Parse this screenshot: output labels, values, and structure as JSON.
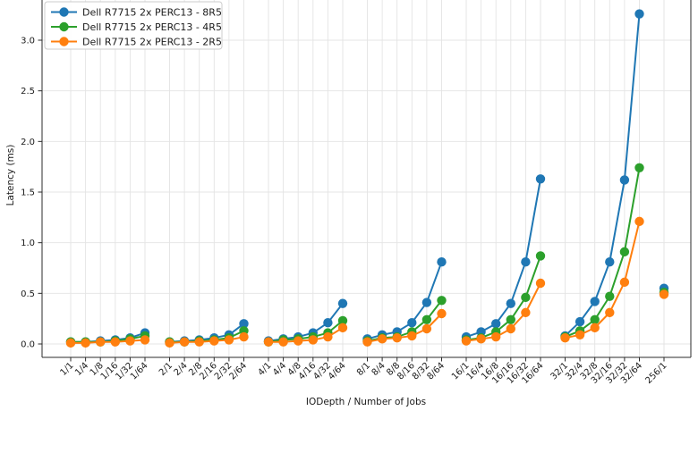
{
  "chart_data": {
    "type": "line",
    "title": "",
    "xlabel": "IODepth / Number of Jobs",
    "ylabel": "Latency (ms)",
    "grid": true,
    "legend_position": "upper-left",
    "group_size": 6,
    "y_ticks": [
      0.0,
      0.5,
      1.0,
      1.5,
      2.0,
      2.5,
      3.0
    ],
    "ylim": [
      -0.13,
      3.4
    ],
    "categories": [
      "1/1",
      "1/4",
      "1/8",
      "1/16",
      "1/32",
      "1/64",
      "2/1",
      "2/4",
      "2/8",
      "2/16",
      "2/32",
      "2/64",
      "4/1",
      "4/4",
      "4/8",
      "4/16",
      "4/32",
      "4/64",
      "8/1",
      "8/4",
      "8/8",
      "8/16",
      "8/32",
      "8/64",
      "16/1",
      "16/4",
      "16/8",
      "16/16",
      "16/32",
      "16/64",
      "32/1",
      "32/4",
      "32/8",
      "32/16",
      "32/32",
      "32/64",
      "256/1"
    ],
    "series": [
      {
        "name": "Dell R7715 2x PERC13 - 8R5",
        "color": "#1f77b4",
        "values": [
          0.02,
          0.02,
          0.03,
          0.04,
          0.06,
          0.11,
          0.02,
          0.03,
          0.04,
          0.06,
          0.09,
          0.2,
          0.03,
          0.05,
          0.07,
          0.11,
          0.21,
          0.4,
          0.05,
          0.09,
          0.12,
          0.21,
          0.41,
          0.81,
          0.07,
          0.12,
          0.2,
          0.4,
          0.81,
          1.63,
          0.08,
          0.22,
          0.42,
          0.81,
          1.62,
          3.26,
          0.55
        ]
      },
      {
        "name": "Dell R7715 2x PERC13 - 4R5",
        "color": "#2ca02c",
        "values": [
          0.02,
          0.02,
          0.02,
          0.03,
          0.05,
          0.08,
          0.02,
          0.02,
          0.03,
          0.04,
          0.06,
          0.13,
          0.02,
          0.04,
          0.05,
          0.07,
          0.11,
          0.23,
          0.03,
          0.06,
          0.07,
          0.12,
          0.24,
          0.43,
          0.04,
          0.06,
          0.12,
          0.24,
          0.46,
          0.87,
          0.07,
          0.13,
          0.24,
          0.47,
          0.91,
          1.74,
          0.51
        ]
      },
      {
        "name": "Dell R7715 2x PERC13 - 2R5",
        "color": "#ff7f0e",
        "values": [
          0.01,
          0.01,
          0.02,
          0.02,
          0.03,
          0.04,
          0.01,
          0.02,
          0.02,
          0.03,
          0.04,
          0.07,
          0.02,
          0.02,
          0.03,
          0.04,
          0.07,
          0.16,
          0.02,
          0.05,
          0.06,
          0.08,
          0.15,
          0.3,
          0.03,
          0.05,
          0.07,
          0.15,
          0.31,
          0.6,
          0.06,
          0.09,
          0.16,
          0.31,
          0.61,
          1.21,
          0.49
        ]
      }
    ],
    "style_colors": {
      "grid": "#e4e4e4",
      "spine": "#2b2b2b",
      "text": "#1a1a1a",
      "legend_border": "#cccccc",
      "background": "#ffffff"
    }
  }
}
